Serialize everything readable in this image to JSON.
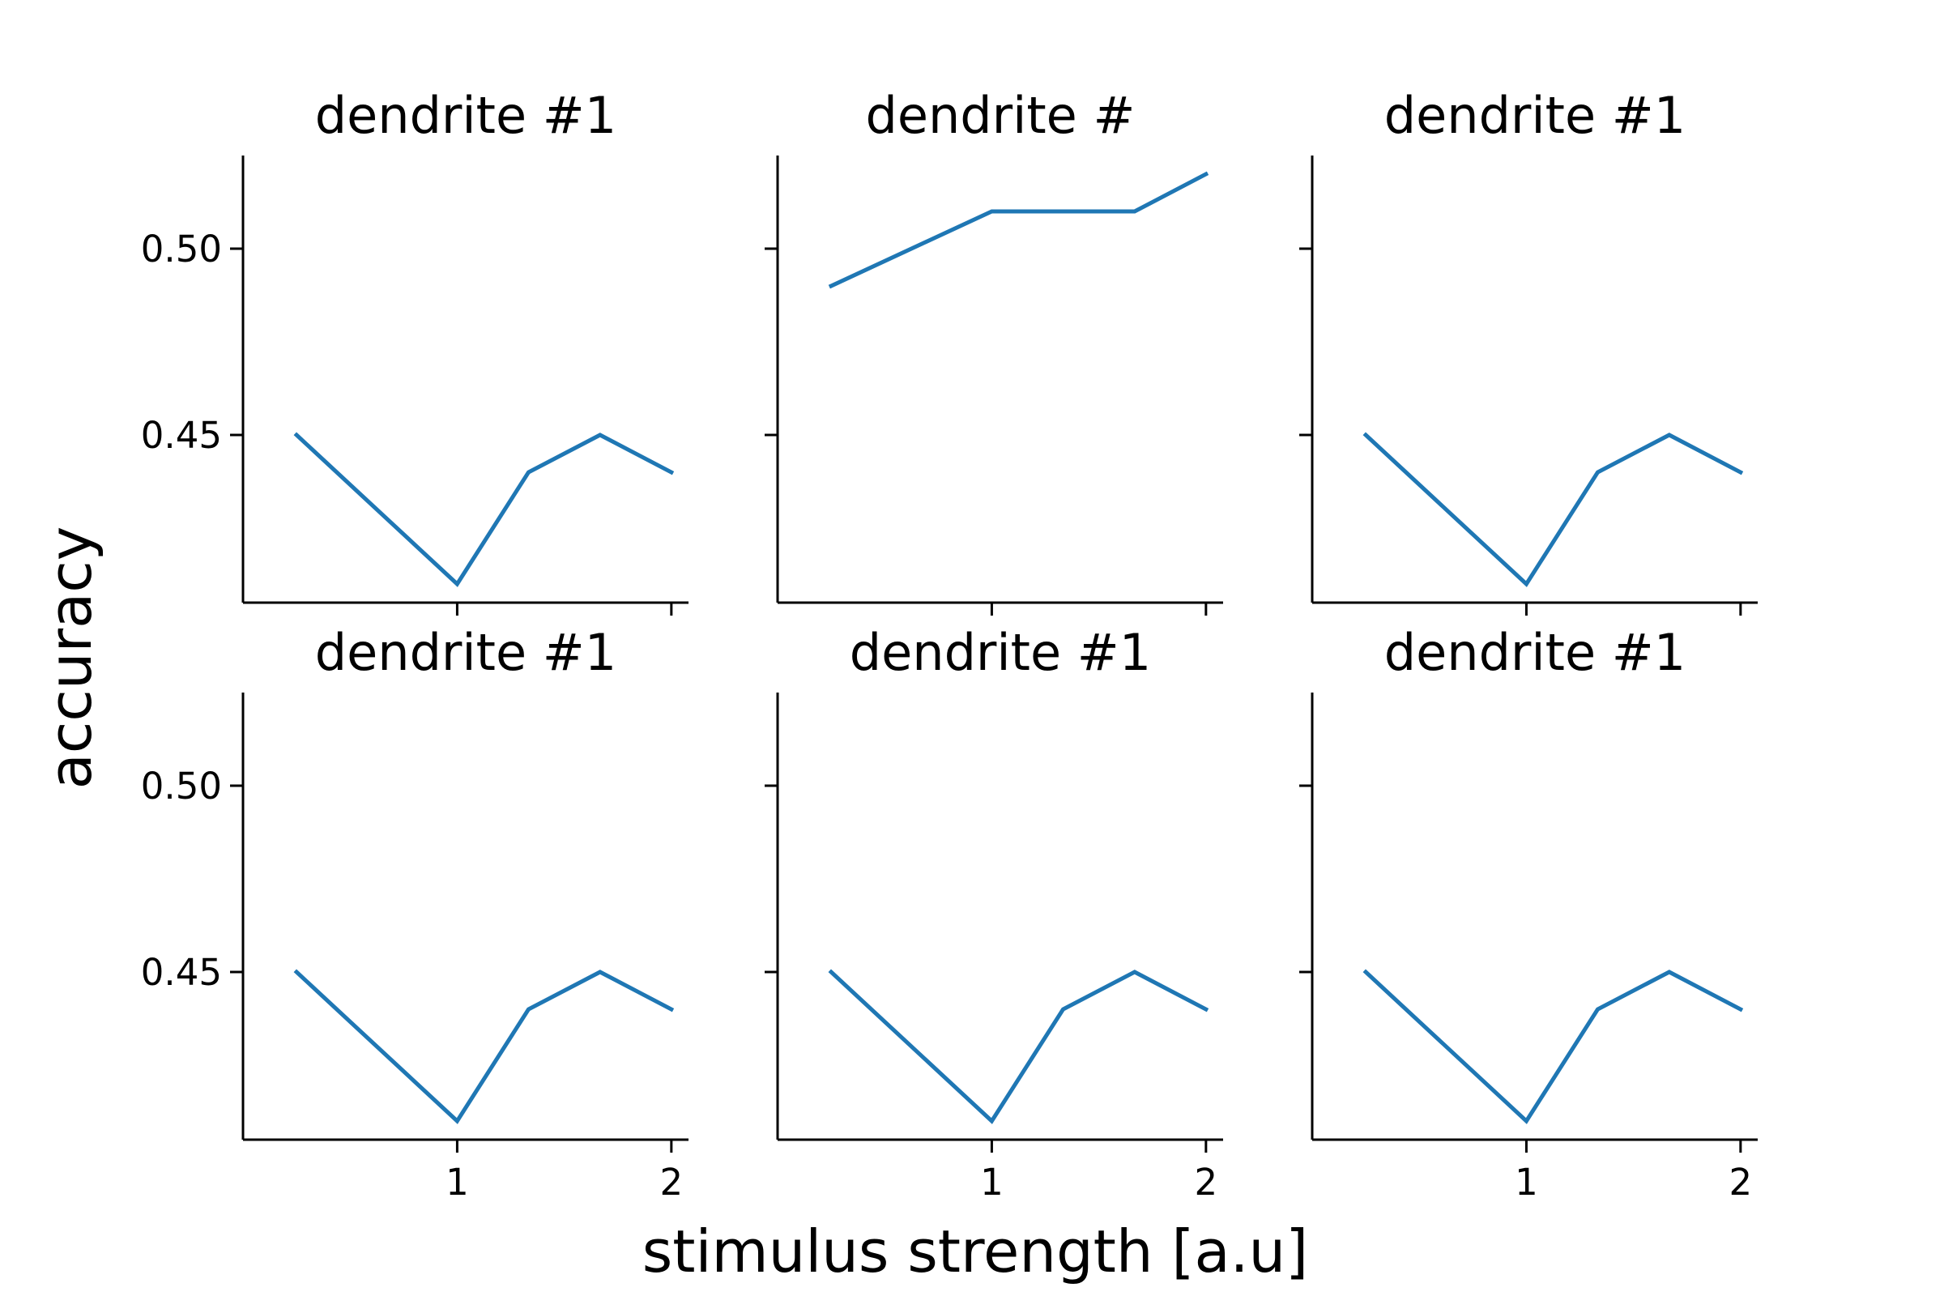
{
  "figure": {
    "supxlabel": "stimulus strength [a.u]",
    "supylabel": "accuracy"
  },
  "colors": {
    "line": "#1f77b4",
    "axes": "#000000",
    "background": "#ffffff"
  },
  "chart_data": [
    {
      "type": "line",
      "title": "dendrite #1",
      "x": [
        0.25,
        1.0,
        1.333,
        1.667,
        2.0
      ],
      "y": [
        0.45,
        0.41,
        0.44,
        0.45,
        0.44
      ],
      "xlim": [
        0.0,
        2.08
      ],
      "ylim": [
        0.405,
        0.525
      ],
      "xticks": [
        1,
        2
      ],
      "xticklabels": [],
      "yticks": [
        0.45,
        0.5
      ],
      "yticklabels": [
        "0.45",
        "0.50"
      ],
      "grid": false
    },
    {
      "type": "line",
      "title": "dendrite #",
      "x": [
        0.25,
        1.0,
        1.333,
        1.667,
        2.0
      ],
      "y": [
        0.49,
        0.51,
        0.51,
        0.51,
        0.52
      ],
      "xlim": [
        0.0,
        2.08
      ],
      "ylim": [
        0.405,
        0.525
      ],
      "xticks": [
        1,
        2
      ],
      "xticklabels": [],
      "yticks": [
        0.45,
        0.5
      ],
      "yticklabels": [],
      "grid": false
    },
    {
      "type": "line",
      "title": "dendrite #1",
      "x": [
        0.25,
        1.0,
        1.333,
        1.667,
        2.0
      ],
      "y": [
        0.45,
        0.41,
        0.44,
        0.45,
        0.44
      ],
      "xlim": [
        0.0,
        2.08
      ],
      "ylim": [
        0.405,
        0.525
      ],
      "xticks": [
        1,
        2
      ],
      "xticklabels": [],
      "yticks": [
        0.45,
        0.5
      ],
      "yticklabels": [],
      "grid": false
    },
    {
      "type": "line",
      "title": "dendrite #1",
      "x": [
        0.25,
        1.0,
        1.333,
        1.667,
        2.0
      ],
      "y": [
        0.45,
        0.41,
        0.44,
        0.45,
        0.44
      ],
      "xlim": [
        0.0,
        2.08
      ],
      "ylim": [
        0.405,
        0.525
      ],
      "xticks": [
        1,
        2
      ],
      "xticklabels": [
        "1",
        "2"
      ],
      "yticks": [
        0.45,
        0.5
      ],
      "yticklabels": [
        "0.45",
        "0.50"
      ],
      "grid": false
    },
    {
      "type": "line",
      "title": "dendrite #1",
      "x": [
        0.25,
        1.0,
        1.333,
        1.667,
        2.0
      ],
      "y": [
        0.45,
        0.41,
        0.44,
        0.45,
        0.44
      ],
      "xlim": [
        0.0,
        2.08
      ],
      "ylim": [
        0.405,
        0.525
      ],
      "xticks": [
        1,
        2
      ],
      "xticklabels": [
        "1",
        "2"
      ],
      "yticks": [
        0.45,
        0.5
      ],
      "yticklabels": [],
      "grid": false
    },
    {
      "type": "line",
      "title": "dendrite #1",
      "x": [
        0.25,
        1.0,
        1.333,
        1.667,
        2.0
      ],
      "y": [
        0.45,
        0.41,
        0.44,
        0.45,
        0.44
      ],
      "xlim": [
        0.0,
        2.08
      ],
      "ylim": [
        0.405,
        0.525
      ],
      "xticks": [
        1,
        2
      ],
      "xticklabels": [
        "1",
        "2"
      ],
      "yticks": [
        0.45,
        0.5
      ],
      "yticklabels": [],
      "grid": false
    }
  ]
}
